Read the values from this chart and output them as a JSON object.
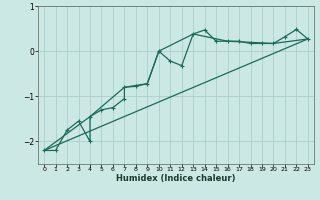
{
  "title": "",
  "xlabel": "Humidex (Indice chaleur)",
  "ylabel": "",
  "bg_color": "#cce8e4",
  "grid_color": "#aacfcb",
  "line_color": "#1a6b5a",
  "xlim": [
    -0.5,
    23.5
  ],
  "ylim": [
    -2.5,
    0.7
  ],
  "yticks": [
    -2,
    -1,
    0,
    1
  ],
  "xticks": [
    0,
    1,
    2,
    3,
    4,
    5,
    6,
    7,
    8,
    9,
    10,
    11,
    12,
    13,
    14,
    15,
    16,
    17,
    18,
    19,
    20,
    21,
    22,
    23
  ],
  "main_series_x": [
    0,
    1,
    2,
    3,
    4,
    4,
    5,
    6,
    7,
    7,
    8,
    9,
    10,
    11,
    12,
    13,
    14,
    15,
    16,
    17,
    18,
    19,
    20,
    21,
    22,
    23
  ],
  "main_series_y": [
    -2.2,
    -2.2,
    -1.75,
    -1.55,
    -2.0,
    -1.45,
    -1.3,
    -1.25,
    -1.05,
    -0.8,
    -0.78,
    -0.72,
    0.0,
    -0.22,
    -0.32,
    0.38,
    0.47,
    0.22,
    0.22,
    0.22,
    0.17,
    0.17,
    0.17,
    0.32,
    0.48,
    0.27
  ],
  "line1_x": [
    0,
    23
  ],
  "line1_y": [
    -2.2,
    0.27
  ],
  "line2_x": [
    0,
    4,
    7,
    9,
    10,
    13,
    16,
    20,
    23
  ],
  "line2_y": [
    -2.2,
    -1.45,
    -0.8,
    -0.72,
    0.0,
    0.38,
    0.22,
    0.17,
    0.27
  ]
}
